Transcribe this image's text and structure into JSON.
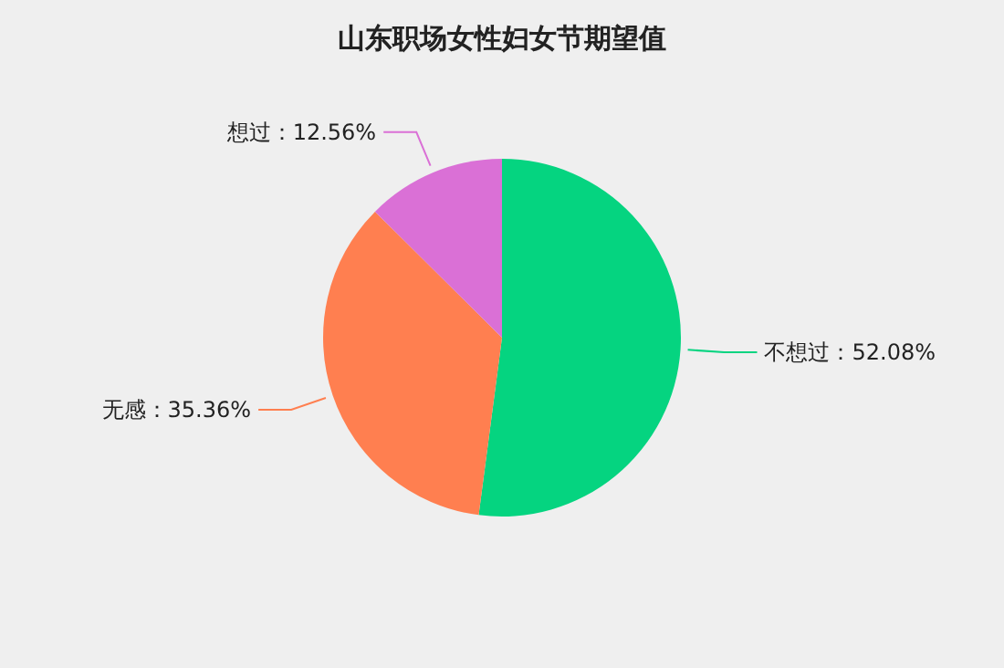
{
  "chart_data": {
    "type": "pie",
    "title": "山东职场女性妇女节期望值",
    "categories": [
      "不想过",
      "无感",
      "想过"
    ],
    "values": [
      52.08,
      35.36,
      12.56
    ],
    "value_labels": [
      "52.08%",
      "35.36%",
      "12.56%"
    ],
    "colors": [
      "#05d480",
      "#ff7f50",
      "#da70d6"
    ]
  }
}
